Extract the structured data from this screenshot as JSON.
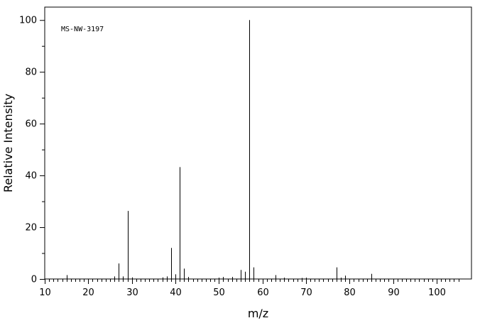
{
  "chart_data": {
    "type": "bar",
    "title": "MS-NW-3197",
    "xlabel": "m/z",
    "ylabel": "Relative Intensity",
    "xlim": [
      10,
      108
    ],
    "ylim": [
      0,
      105
    ],
    "x_major_ticks": [
      10,
      20,
      30,
      40,
      50,
      60,
      70,
      80,
      90,
      100
    ],
    "x_minor_step": 1,
    "y_major_ticks": [
      0,
      20,
      40,
      60,
      80,
      100
    ],
    "y_minor_step": 10,
    "grid": false,
    "peaks": [
      {
        "mz": 15,
        "intensity": 1.5
      },
      {
        "mz": 26,
        "intensity": 1.0
      },
      {
        "mz": 27,
        "intensity": 6.0
      },
      {
        "mz": 28,
        "intensity": 1.0
      },
      {
        "mz": 29,
        "intensity": 26.3
      },
      {
        "mz": 30,
        "intensity": 0.6
      },
      {
        "mz": 37,
        "intensity": 0.6
      },
      {
        "mz": 38,
        "intensity": 1.0
      },
      {
        "mz": 39,
        "intensity": 12.0
      },
      {
        "mz": 40,
        "intensity": 1.8
      },
      {
        "mz": 41,
        "intensity": 43.2
      },
      {
        "mz": 42,
        "intensity": 4.0
      },
      {
        "mz": 43,
        "intensity": 0.8
      },
      {
        "mz": 50,
        "intensity": 0.5
      },
      {
        "mz": 51,
        "intensity": 0.8
      },
      {
        "mz": 53,
        "intensity": 0.8
      },
      {
        "mz": 55,
        "intensity": 3.5
      },
      {
        "mz": 56,
        "intensity": 2.8
      },
      {
        "mz": 57,
        "intensity": 100.0
      },
      {
        "mz": 58,
        "intensity": 4.5
      },
      {
        "mz": 63,
        "intensity": 1.5
      },
      {
        "mz": 65,
        "intensity": 0.5
      },
      {
        "mz": 69,
        "intensity": 0.4
      },
      {
        "mz": 70,
        "intensity": 0.5
      },
      {
        "mz": 77,
        "intensity": 4.5
      },
      {
        "mz": 78,
        "intensity": 0.5
      },
      {
        "mz": 79,
        "intensity": 1.3
      },
      {
        "mz": 85,
        "intensity": 2.0
      }
    ]
  },
  "colors": {
    "line": "#000000",
    "background": "#ffffff"
  }
}
